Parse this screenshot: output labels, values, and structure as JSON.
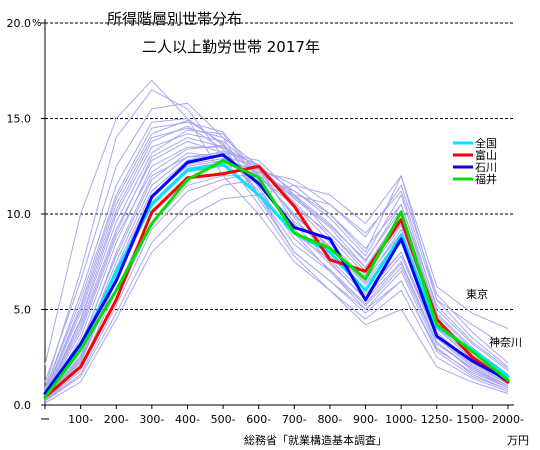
{
  "chart_data": {
    "type": "line",
    "title": "所得階層別世帯分布",
    "subtitle": "二人以上勤労世帯  2017年",
    "source": "総務省「就業構造基本調査」",
    "xunit": "万円",
    "yunit": "%",
    "categories": [
      "",
      "100-",
      "200-",
      "300-",
      "400-",
      "500-",
      "600-",
      "700-",
      "800-",
      "900-",
      "1000-",
      "1250-",
      "1500-",
      "2000-"
    ],
    "y_ticks": [
      "0.0",
      "5.0",
      "10.0",
      "15.0",
      "20.0"
    ],
    "ylim": [
      0,
      20
    ],
    "grid": "horizontal-dashed",
    "legend_position": "right",
    "series": [
      {
        "name": "全国",
        "color": "#00e5ff",
        "values": [
          0.6,
          3.0,
          7.0,
          10.5,
          12.3,
          12.6,
          11.0,
          9.0,
          8.0,
          6.0,
          8.9,
          4.1,
          2.9,
          1.5
        ]
      },
      {
        "name": "富山",
        "color": "#ff0000",
        "values": [
          0.4,
          2.0,
          5.5,
          10.1,
          11.9,
          12.1,
          12.5,
          10.4,
          7.6,
          7.0,
          9.7,
          4.5,
          2.5,
          1.2
        ]
      },
      {
        "name": "石川",
        "color": "#0000ff",
        "values": [
          0.6,
          3.2,
          6.5,
          10.9,
          12.7,
          13.1,
          11.6,
          9.3,
          8.7,
          5.5,
          8.7,
          3.6,
          2.3,
          1.3
        ]
      },
      {
        "name": "福井",
        "color": "#00e000",
        "values": [
          0.4,
          2.9,
          6.0,
          9.5,
          11.8,
          12.8,
          11.9,
          9.0,
          8.2,
          6.6,
          10.1,
          4.2,
          2.8,
          1.3
        ]
      }
    ],
    "background_series": [
      [
        2.1,
        10.0,
        15.0,
        17.0,
        15.0,
        12.0,
        10.0,
        7.5,
        6.0,
        4.5,
        6.0,
        2.5,
        1.4,
        0.7
      ],
      [
        0.9,
        7.0,
        14.0,
        16.5,
        15.5,
        13.0,
        10.5,
        7.8,
        6.0,
        4.2,
        5.0,
        2.0,
        1.2,
        0.6
      ],
      [
        1.2,
        6.5,
        12.5,
        15.5,
        15.8,
        14.0,
        11.0,
        8.0,
        6.5,
        5.0,
        6.5,
        2.8,
        1.5,
        0.8
      ],
      [
        0.8,
        5.5,
        11.0,
        14.5,
        14.8,
        14.3,
        12.0,
        9.0,
        7.0,
        5.0,
        7.0,
        3.0,
        1.6,
        0.8
      ],
      [
        0.7,
        5.0,
        10.5,
        14.0,
        14.5,
        14.0,
        12.5,
        9.5,
        7.5,
        5.5,
        7.5,
        3.3,
        1.8,
        0.9
      ],
      [
        0.5,
        4.5,
        10.0,
        13.5,
        14.2,
        13.8,
        12.3,
        9.8,
        7.8,
        6.0,
        8.0,
        3.5,
        2.0,
        1.0
      ],
      [
        0.5,
        4.0,
        9.0,
        13.0,
        14.0,
        13.5,
        12.0,
        10.0,
        8.2,
        6.3,
        8.5,
        3.8,
        2.2,
        1.1
      ],
      [
        0.4,
        3.5,
        8.5,
        12.5,
        13.5,
        13.5,
        12.5,
        10.5,
        8.5,
        6.6,
        9.0,
        4.0,
        2.4,
        1.2
      ],
      [
        0.4,
        3.0,
        8.0,
        12.0,
        13.0,
        13.2,
        12.8,
        11.0,
        9.0,
        7.0,
        9.5,
        4.3,
        2.6,
        1.3
      ],
      [
        0.3,
        2.8,
        7.5,
        11.5,
        13.0,
        13.0,
        12.5,
        10.8,
        9.3,
        7.2,
        10.0,
        4.5,
        2.8,
        1.4
      ],
      [
        0.3,
        2.5,
        7.0,
        11.0,
        12.5,
        12.8,
        12.3,
        11.0,
        9.5,
        7.5,
        10.5,
        4.8,
        3.0,
        1.6
      ],
      [
        0.3,
        2.2,
        6.5,
        10.5,
        12.2,
        12.5,
        12.5,
        11.2,
        9.8,
        7.8,
        11.0,
        5.0,
        3.2,
        1.8
      ],
      [
        0.2,
        2.0,
        6.0,
        10.0,
        11.8,
        12.2,
        12.4,
        11.5,
        10.0,
        8.0,
        12.0,
        5.5,
        3.5,
        2.0
      ],
      [
        0.2,
        1.8,
        5.5,
        9.5,
        11.5,
        12.0,
        12.0,
        11.2,
        10.0,
        8.2,
        10.5,
        5.2,
        3.3,
        1.9
      ],
      [
        0.3,
        2.4,
        6.8,
        10.8,
        12.6,
        12.9,
        12.0,
        10.4,
        9.0,
        7.2,
        9.8,
        4.4,
        2.7,
        1.4
      ],
      [
        0.4,
        3.2,
        7.8,
        11.8,
        13.2,
        13.0,
        11.5,
        9.6,
        8.2,
        6.5,
        9.2,
        4.1,
        2.5,
        1.3
      ],
      [
        0.5,
        4.2,
        9.2,
        12.8,
        13.8,
        13.2,
        11.2,
        9.0,
        7.6,
        5.8,
        8.0,
        3.6,
        2.1,
        1.1
      ],
      [
        0.6,
        4.8,
        10.2,
        13.8,
        14.6,
        13.4,
        11.0,
        8.4,
        7.0,
        5.2,
        7.2,
        3.2,
        1.9,
        1.0
      ],
      [
        0.8,
        5.8,
        11.5,
        14.8,
        15.0,
        13.6,
        10.8,
        8.0,
        6.5,
        4.8,
        6.5,
        2.9,
        1.7,
        0.9
      ],
      [
        0.3,
        2.6,
        7.2,
        11.2,
        12.8,
        13.3,
        12.6,
        10.6,
        8.8,
        6.8,
        9.4,
        4.3,
        2.6,
        1.3
      ],
      [
        0.4,
        3.8,
        8.8,
        12.2,
        13.4,
        13.6,
        12.1,
        9.9,
        8.3,
        6.4,
        8.8,
        4.0,
        2.4,
        1.2
      ],
      [
        0.5,
        4.4,
        9.6,
        13.2,
        14.4,
        14.2,
        11.8,
        9.2,
        7.4,
        5.6,
        7.8,
        3.5,
        2.0,
        1.0
      ],
      [
        0.2,
        1.6,
        5.2,
        9.2,
        11.2,
        11.8,
        12.2,
        11.8,
        10.5,
        8.8,
        11.5,
        5.8,
        3.8,
        2.2
      ],
      [
        0.3,
        2.3,
        6.6,
        10.6,
        12.4,
        12.7,
        12.2,
        10.9,
        9.4,
        7.6,
        10.2,
        4.7,
        2.9,
        1.5
      ],
      [
        0.6,
        5.2,
        10.8,
        14.2,
        14.9,
        13.7,
        11.4,
        8.7,
        7.1,
        5.3,
        7.4,
        3.3,
        1.9,
        0.9
      ],
      [
        0.1,
        1.2,
        4.5,
        8.0,
        9.8,
        10.8,
        11.0,
        11.5,
        11.0,
        9.5,
        12.0,
        6.2,
        4.8,
        4.0
      ],
      [
        0.2,
        1.5,
        4.8,
        8.5,
        10.5,
        11.5,
        11.8,
        11.0,
        10.5,
        9.0,
        11.2,
        5.5,
        4.2,
        3.0
      ]
    ],
    "annotations": [
      {
        "label": "東京"
      },
      {
        "label": "神奈川"
      }
    ]
  }
}
